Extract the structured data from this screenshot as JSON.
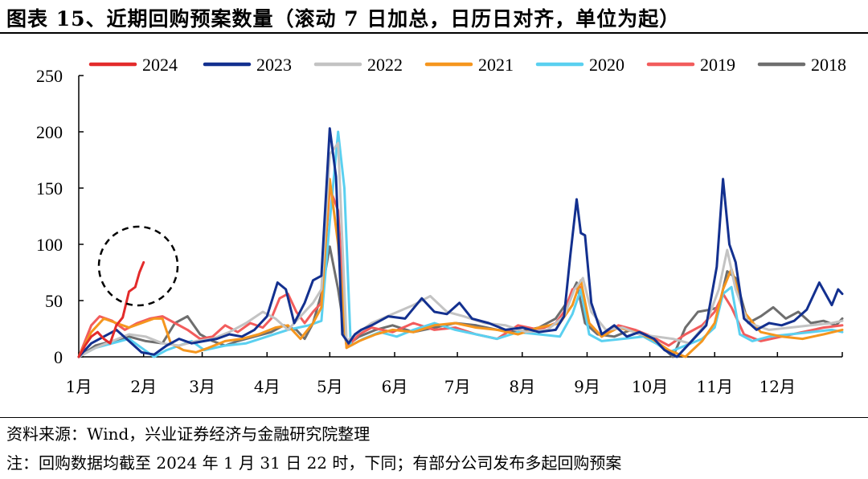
{
  "title": "图表 15、近期回购预案数量（滚动 7 日加总，日历日对齐，单位为起）",
  "footer": {
    "source": "资料来源：Wind，兴业证券经济与金融研究院整理",
    "note": "注：回购数据均截至 2024 年 1 月 31 日 22 时，下同；有部分公司发布多起回购预案"
  },
  "chart_data": {
    "type": "line",
    "title": "近期回购预案数量（滚动7日加总，日历日对齐，单位为起）",
    "xlabel": "",
    "ylabel": "",
    "ylim": [
      0,
      250
    ],
    "yticks": [
      0,
      50,
      100,
      150,
      200,
      250
    ],
    "xlim": [
      0,
      365
    ],
    "month_ticks": [
      0,
      31,
      59,
      90,
      120,
      151,
      181,
      212,
      243,
      273,
      304,
      334,
      365
    ],
    "month_labels": [
      "1月",
      "2月",
      "3月",
      "4月",
      "5月",
      "6月",
      "7月",
      "8月",
      "9月",
      "10月",
      "11月",
      "12月"
    ],
    "legend_position": "top",
    "annotation": "dashed circle around 2024 series (late January)",
    "series": [
      {
        "name": "2024",
        "color": "#e32b2b",
        "width": 3,
        "x": [
          0,
          3,
          6,
          9,
          12,
          15,
          18,
          21,
          24,
          27,
          29,
          31
        ],
        "values": [
          0,
          10,
          18,
          22,
          16,
          12,
          28,
          35,
          58,
          62,
          75,
          84
        ]
      },
      {
        "name": "2023",
        "color": "#13308f",
        "width": 3,
        "x": [
          0,
          6,
          12,
          18,
          24,
          30,
          36,
          42,
          48,
          54,
          60,
          66,
          72,
          78,
          84,
          90,
          95,
          99,
          103,
          108,
          112,
          116,
          120,
          123,
          126,
          129,
          132,
          135,
          140,
          148,
          156,
          164,
          170,
          176,
          182,
          188,
          196,
          204,
          212,
          220,
          228,
          232,
          235,
          238,
          240,
          242,
          245,
          250,
          256,
          262,
          268,
          275,
          280,
          286,
          292,
          300,
          305,
          308,
          311,
          314,
          318,
          324,
          330,
          336,
          342,
          348,
          354,
          360,
          363,
          365
        ],
        "values": [
          0,
          12,
          18,
          24,
          14,
          4,
          2,
          10,
          16,
          12,
          14,
          16,
          20,
          18,
          24,
          36,
          66,
          60,
          30,
          48,
          68,
          72,
          203,
          160,
          20,
          12,
          20,
          24,
          28,
          36,
          34,
          52,
          40,
          38,
          48,
          34,
          30,
          24,
          26,
          22,
          24,
          36,
          90,
          140,
          110,
          108,
          48,
          20,
          28,
          18,
          22,
          16,
          6,
          0,
          12,
          28,
          80,
          158,
          100,
          84,
          34,
          24,
          30,
          28,
          32,
          42,
          66,
          46,
          60,
          56
        ]
      },
      {
        "name": "2022",
        "color": "#c3c3c3",
        "width": 3,
        "x": [
          0,
          8,
          16,
          24,
          32,
          40,
          48,
          56,
          64,
          72,
          80,
          88,
          94,
          100,
          106,
          112,
          116,
          120,
          124,
          128,
          134,
          140,
          150,
          160,
          168,
          176,
          184,
          194,
          204,
          214,
          224,
          232,
          237,
          241,
          245,
          252,
          260,
          268,
          276,
          284,
          292,
          300,
          306,
          310,
          314,
          320,
          330,
          340,
          350,
          360,
          365
        ],
        "values": [
          0,
          8,
          14,
          20,
          18,
          12,
          10,
          14,
          16,
          22,
          30,
          40,
          34,
          24,
          36,
          48,
          60,
          180,
          190,
          14,
          22,
          30,
          38,
          46,
          54,
          40,
          36,
          30,
          28,
          22,
          24,
          36,
          60,
          70,
          40,
          24,
          26,
          20,
          18,
          16,
          12,
          30,
          60,
          95,
          60,
          30,
          24,
          26,
          28,
          30,
          32
        ]
      },
      {
        "name": "2021",
        "color": "#f5961e",
        "width": 3,
        "x": [
          0,
          6,
          12,
          18,
          24,
          30,
          36,
          40,
          44,
          50,
          56,
          62,
          70,
          78,
          86,
          94,
          100,
          106,
          112,
          116,
          120,
          124,
          128,
          134,
          142,
          150,
          160,
          170,
          180,
          190,
          200,
          210,
          220,
          230,
          236,
          240,
          244,
          250,
          258,
          266,
          274,
          282,
          290,
          298,
          304,
          308,
          312,
          318,
          326,
          336,
          346,
          356,
          365
        ],
        "values": [
          0,
          22,
          34,
          30,
          26,
          30,
          34,
          34,
          12,
          6,
          4,
          8,
          14,
          16,
          20,
          26,
          28,
          16,
          30,
          44,
          158,
          100,
          8,
          14,
          20,
          24,
          22,
          28,
          30,
          26,
          24,
          20,
          26,
          30,
          46,
          68,
          30,
          18,
          26,
          22,
          16,
          6,
          0,
          14,
          30,
          60,
          78,
          40,
          22,
          18,
          16,
          20,
          24
        ]
      },
      {
        "name": "2020",
        "color": "#5ad0f0",
        "width": 3,
        "x": [
          0,
          8,
          16,
          24,
          30,
          36,
          42,
          48,
          54,
          60,
          70,
          80,
          90,
          100,
          110,
          116,
          120,
          124,
          127,
          130,
          136,
          144,
          152,
          160,
          170,
          180,
          190,
          200,
          210,
          220,
          230,
          236,
          240,
          244,
          250,
          260,
          270,
          276,
          282,
          290,
          298,
          304,
          308,
          312,
          316,
          322,
          330,
          340,
          350,
          360,
          365
        ],
        "values": [
          0,
          8,
          12,
          16,
          8,
          0,
          6,
          10,
          14,
          6,
          10,
          12,
          18,
          24,
          28,
          32,
          120,
          200,
          150,
          10,
          16,
          22,
          18,
          24,
          30,
          24,
          20,
          16,
          22,
          20,
          18,
          38,
          60,
          20,
          14,
          16,
          18,
          12,
          4,
          10,
          16,
          26,
          56,
          62,
          20,
          14,
          18,
          20,
          22,
          24,
          22
        ]
      },
      {
        "name": "2019",
        "color": "#f25c5c",
        "width": 3,
        "x": [
          0,
          6,
          10,
          16,
          22,
          28,
          34,
          40,
          46,
          52,
          58,
          64,
          70,
          76,
          82,
          88,
          92,
          96,
          100,
          104,
          108,
          112,
          116,
          120,
          124,
          128,
          134,
          140,
          150,
          160,
          170,
          180,
          190,
          200,
          210,
          220,
          228,
          232,
          236,
          240,
          244,
          250,
          258,
          266,
          274,
          282,
          290,
          298,
          304,
          308,
          312,
          318,
          326,
          336,
          346,
          356,
          365
        ],
        "values": [
          0,
          28,
          36,
          32,
          24,
          30,
          34,
          36,
          30,
          24,
          16,
          18,
          28,
          22,
          30,
          26,
          34,
          52,
          56,
          40,
          30,
          40,
          48,
          150,
          130,
          8,
          20,
          26,
          22,
          30,
          24,
          26,
          20,
          16,
          28,
          24,
          30,
          40,
          60,
          62,
          30,
          18,
          28,
          24,
          18,
          10,
          20,
          28,
          40,
          56,
          44,
          20,
          14,
          18,
          22,
          26,
          28
        ]
      },
      {
        "name": "2018",
        "color": "#6e6e6e",
        "width": 3,
        "x": [
          0,
          8,
          16,
          24,
          32,
          40,
          46,
          52,
          58,
          64,
          70,
          76,
          84,
          92,
          98,
          104,
          108,
          112,
          116,
          120,
          124,
          128,
          134,
          142,
          150,
          160,
          170,
          180,
          190,
          200,
          210,
          220,
          228,
          234,
          238,
          242,
          248,
          256,
          264,
          272,
          278,
          284,
          290,
          296,
          302,
          306,
          310,
          314,
          320,
          326,
          332,
          338,
          344,
          350,
          356,
          362,
          365
        ],
        "values": [
          0,
          10,
          14,
          18,
          14,
          12,
          30,
          36,
          20,
          14,
          10,
          14,
          18,
          22,
          28,
          24,
          16,
          30,
          56,
          98,
          60,
          10,
          18,
          24,
          28,
          22,
          26,
          30,
          28,
          24,
          22,
          26,
          34,
          50,
          66,
          30,
          20,
          18,
          24,
          16,
          10,
          0,
          26,
          40,
          42,
          44,
          76,
          70,
          30,
          36,
          44,
          34,
          40,
          30,
          32,
          28,
          34
        ]
      }
    ]
  }
}
